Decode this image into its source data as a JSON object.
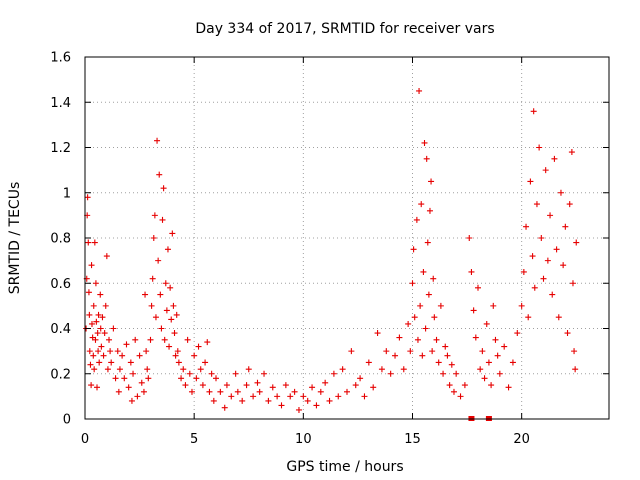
{
  "chart_data": {
    "type": "scatter",
    "title": "Day 334 of 2017, SRMTID for receiver vars",
    "xlabel": "GPS time / hours",
    "ylabel": "SRMTID / TECUs",
    "xlim": [
      0,
      24
    ],
    "ylim": [
      0,
      1.6
    ],
    "x_ticks": [
      "0",
      "5",
      "10",
      "15",
      "20"
    ],
    "y_ticks": [
      "0",
      "0.2",
      "0.4",
      "0.6",
      "0.8",
      "1",
      "1.2",
      "1.4",
      "1.6"
    ],
    "grid": true,
    "marker": "+",
    "color": "#e60000",
    "series": [
      {
        "name": "SRMTID",
        "points": [
          [
            0.05,
            0.4
          ],
          [
            0.08,
            0.62
          ],
          [
            0.1,
            0.9
          ],
          [
            0.12,
            0.98
          ],
          [
            0.15,
            0.78
          ],
          [
            0.18,
            0.56
          ],
          [
            0.2,
            0.46
          ],
          [
            0.22,
            0.3
          ],
          [
            0.25,
            0.24
          ],
          [
            0.28,
            0.15
          ],
          [
            0.3,
            0.68
          ],
          [
            0.32,
            0.42
          ],
          [
            0.35,
            0.36
          ],
          [
            0.38,
            0.28
          ],
          [
            0.4,
            0.5
          ],
          [
            0.42,
            0.22
          ],
          [
            0.45,
            0.78
          ],
          [
            0.48,
            0.35
          ],
          [
            0.5,
            0.6
          ],
          [
            0.52,
            0.43
          ],
          [
            0.55,
            0.14
          ],
          [
            0.58,
            0.38
          ],
          [
            0.6,
            0.3
          ],
          [
            0.62,
            0.46
          ],
          [
            0.65,
            0.25
          ],
          [
            0.7,
            0.55
          ],
          [
            0.72,
            0.4
          ],
          [
            0.75,
            0.32
          ],
          [
            0.8,
            0.45
          ],
          [
            0.85,
            0.28
          ],
          [
            0.9,
            0.38
          ],
          [
            0.95,
            0.5
          ],
          [
            1.0,
            0.72
          ],
          [
            1.05,
            0.22
          ],
          [
            1.1,
            0.35
          ],
          [
            1.15,
            0.3
          ],
          [
            1.2,
            0.25
          ],
          [
            1.3,
            0.4
          ],
          [
            1.4,
            0.18
          ],
          [
            1.5,
            0.3
          ],
          [
            1.55,
            0.12
          ],
          [
            1.6,
            0.22
          ],
          [
            1.7,
            0.28
          ],
          [
            1.8,
            0.18
          ],
          [
            1.9,
            0.33
          ],
          [
            2.0,
            0.14
          ],
          [
            2.1,
            0.25
          ],
          [
            2.15,
            0.08
          ],
          [
            2.2,
            0.2
          ],
          [
            2.3,
            0.35
          ],
          [
            2.4,
            0.1
          ],
          [
            2.5,
            0.28
          ],
          [
            2.6,
            0.16
          ],
          [
            2.7,
            0.12
          ],
          [
            2.75,
            0.55
          ],
          [
            2.8,
            0.3
          ],
          [
            2.85,
            0.22
          ],
          [
            2.9,
            0.18
          ],
          [
            3.0,
            0.35
          ],
          [
            3.05,
            0.5
          ],
          [
            3.1,
            0.62
          ],
          [
            3.15,
            0.8
          ],
          [
            3.2,
            0.9
          ],
          [
            3.25,
            0.45
          ],
          [
            3.3,
            1.23
          ],
          [
            3.35,
            0.7
          ],
          [
            3.4,
            1.08
          ],
          [
            3.45,
            0.55
          ],
          [
            3.5,
            0.4
          ],
          [
            3.55,
            0.88
          ],
          [
            3.6,
            1.02
          ],
          [
            3.65,
            0.35
          ],
          [
            3.7,
            0.6
          ],
          [
            3.75,
            0.48
          ],
          [
            3.8,
            0.75
          ],
          [
            3.85,
            0.32
          ],
          [
            3.9,
            0.58
          ],
          [
            3.95,
            0.44
          ],
          [
            4.0,
            0.82
          ],
          [
            4.05,
            0.5
          ],
          [
            4.1,
            0.38
          ],
          [
            4.15,
            0.28
          ],
          [
            4.2,
            0.46
          ],
          [
            4.25,
            0.3
          ],
          [
            4.3,
            0.25
          ],
          [
            4.4,
            0.18
          ],
          [
            4.5,
            0.22
          ],
          [
            4.6,
            0.15
          ],
          [
            4.7,
            0.35
          ],
          [
            4.8,
            0.2
          ],
          [
            4.9,
            0.12
          ],
          [
            5.0,
            0.28
          ],
          [
            5.1,
            0.18
          ],
          [
            5.2,
            0.32
          ],
          [
            5.3,
            0.22
          ],
          [
            5.4,
            0.15
          ],
          [
            5.5,
            0.25
          ],
          [
            5.6,
            0.34
          ],
          [
            5.7,
            0.12
          ],
          [
            5.8,
            0.2
          ],
          [
            5.9,
            0.08
          ],
          [
            6.0,
            0.18
          ],
          [
            6.2,
            0.12
          ],
          [
            6.4,
            0.05
          ],
          [
            6.5,
            0.15
          ],
          [
            6.7,
            0.1
          ],
          [
            6.9,
            0.2
          ],
          [
            7.0,
            0.12
          ],
          [
            7.2,
            0.08
          ],
          [
            7.4,
            0.15
          ],
          [
            7.5,
            0.22
          ],
          [
            7.7,
            0.1
          ],
          [
            7.9,
            0.16
          ],
          [
            8.0,
            0.12
          ],
          [
            8.2,
            0.2
          ],
          [
            8.4,
            0.08
          ],
          [
            8.6,
            0.14
          ],
          [
            8.8,
            0.1
          ],
          [
            9.0,
            0.06
          ],
          [
            9.2,
            0.15
          ],
          [
            9.4,
            0.1
          ],
          [
            9.6,
            0.12
          ],
          [
            9.8,
            0.04
          ],
          [
            10.0,
            0.1
          ],
          [
            10.2,
            0.08
          ],
          [
            10.4,
            0.14
          ],
          [
            10.6,
            0.06
          ],
          [
            10.8,
            0.12
          ],
          [
            11.0,
            0.16
          ],
          [
            11.2,
            0.08
          ],
          [
            11.4,
            0.2
          ],
          [
            11.6,
            0.1
          ],
          [
            11.8,
            0.22
          ],
          [
            12.0,
            0.12
          ],
          [
            12.2,
            0.3
          ],
          [
            12.4,
            0.15
          ],
          [
            12.6,
            0.18
          ],
          [
            12.8,
            0.1
          ],
          [
            13.0,
            0.25
          ],
          [
            13.2,
            0.14
          ],
          [
            13.4,
            0.38
          ],
          [
            13.6,
            0.22
          ],
          [
            13.8,
            0.3
          ],
          [
            14.0,
            0.2
          ],
          [
            14.2,
            0.28
          ],
          [
            14.4,
            0.36
          ],
          [
            14.6,
            0.22
          ],
          [
            14.8,
            0.42
          ],
          [
            14.9,
            0.3
          ],
          [
            15.0,
            0.6
          ],
          [
            15.05,
            0.75
          ],
          [
            15.1,
            0.45
          ],
          [
            15.2,
            0.88
          ],
          [
            15.25,
            0.35
          ],
          [
            15.3,
            1.45
          ],
          [
            15.35,
            0.5
          ],
          [
            15.4,
            0.95
          ],
          [
            15.45,
            0.28
          ],
          [
            15.5,
            0.65
          ],
          [
            15.55,
            1.22
          ],
          [
            15.6,
            0.4
          ],
          [
            15.65,
            1.15
          ],
          [
            15.7,
            0.78
          ],
          [
            15.75,
            0.55
          ],
          [
            15.8,
            0.92
          ],
          [
            15.85,
            1.05
          ],
          [
            15.9,
            0.3
          ],
          [
            15.95,
            0.62
          ],
          [
            16.0,
            0.45
          ],
          [
            16.1,
            0.35
          ],
          [
            16.2,
            0.25
          ],
          [
            16.3,
            0.5
          ],
          [
            16.4,
            0.2
          ],
          [
            16.5,
            0.32
          ],
          [
            16.6,
            0.28
          ],
          [
            16.7,
            0.15
          ],
          [
            16.8,
            0.24
          ],
          [
            16.9,
            0.12
          ],
          [
            17.0,
            0.2
          ],
          [
            17.2,
            0.1
          ],
          [
            17.4,
            0.15
          ],
          [
            17.6,
            0.8
          ],
          [
            17.7,
            0.65
          ],
          [
            17.8,
            0.48
          ],
          [
            17.9,
            0.36
          ],
          [
            18.0,
            0.58
          ],
          [
            18.1,
            0.22
          ],
          [
            18.2,
            0.3
          ],
          [
            18.3,
            0.18
          ],
          [
            18.4,
            0.42
          ],
          [
            18.5,
            0.25
          ],
          [
            18.6,
            0.15
          ],
          [
            18.7,
            0.5
          ],
          [
            18.8,
            0.35
          ],
          [
            18.9,
            0.28
          ],
          [
            19.0,
            0.2
          ],
          [
            19.2,
            0.32
          ],
          [
            19.4,
            0.14
          ],
          [
            19.6,
            0.25
          ],
          [
            19.8,
            0.38
          ],
          [
            20.0,
            0.5
          ],
          [
            20.1,
            0.65
          ],
          [
            20.2,
            0.85
          ],
          [
            20.3,
            0.45
          ],
          [
            20.4,
            1.05
          ],
          [
            20.5,
            0.72
          ],
          [
            20.55,
            1.36
          ],
          [
            20.6,
            0.58
          ],
          [
            20.7,
            0.95
          ],
          [
            20.8,
            1.2
          ],
          [
            20.9,
            0.8
          ],
          [
            21.0,
            0.62
          ],
          [
            21.1,
            1.1
          ],
          [
            21.2,
            0.7
          ],
          [
            21.3,
            0.9
          ],
          [
            21.4,
            0.55
          ],
          [
            21.5,
            1.15
          ],
          [
            21.6,
            0.75
          ],
          [
            21.7,
            0.45
          ],
          [
            21.8,
            1.0
          ],
          [
            21.9,
            0.68
          ],
          [
            22.0,
            0.85
          ],
          [
            22.1,
            0.38
          ],
          [
            22.2,
            0.95
          ],
          [
            22.3,
            1.18
          ],
          [
            22.35,
            0.6
          ],
          [
            22.4,
            0.3
          ],
          [
            22.45,
            0.22
          ],
          [
            22.5,
            0.78
          ]
        ]
      }
    ],
    "gap_markers": [
      17.7,
      18.5
    ]
  }
}
